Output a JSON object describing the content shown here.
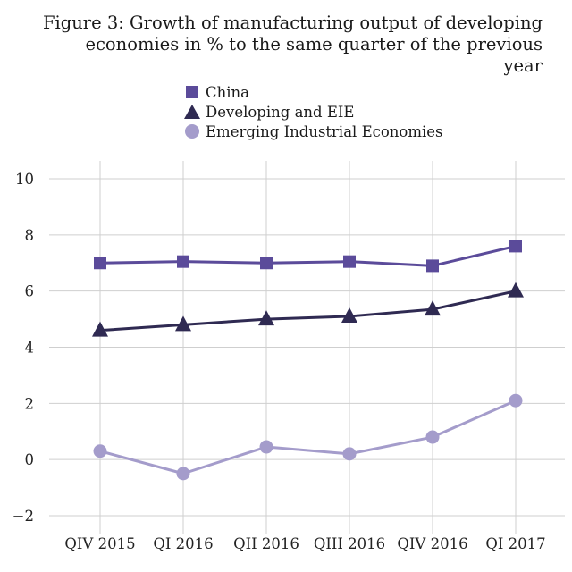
{
  "title_lines": [
    "Figure 3: Growth of manufacturing output of developing",
    "economies in % to the same quarter of the previous year"
  ],
  "chart_data": {
    "type": "line",
    "categories": [
      "QIV 2015",
      "QI 2016",
      "QII 2016",
      "QIII 2016",
      "QIV 2016",
      "QI 2017"
    ],
    "series": [
      {
        "name": "China",
        "marker": "square",
        "color": "#5b4b9a",
        "values": [
          7.0,
          7.05,
          7.0,
          7.05,
          6.9,
          7.6
        ]
      },
      {
        "name": "Developing and EIE",
        "marker": "triangle",
        "color": "#2f2a52",
        "values": [
          4.6,
          4.8,
          5.0,
          5.1,
          5.35,
          6.0
        ]
      },
      {
        "name": "Emerging Industrial Economies",
        "marker": "circle",
        "color": "#a49ccb",
        "values": [
          0.3,
          -0.5,
          0.45,
          0.2,
          0.8,
          2.1
        ]
      }
    ],
    "yticks": [
      -2,
      0,
      2,
      4,
      6,
      8,
      10
    ],
    "ytick_labels": [
      "−2",
      "0",
      "2",
      "4",
      "6",
      "8",
      "10"
    ],
    "ylim": [
      -2,
      10
    ],
    "xlabel": "",
    "ylabel": "",
    "grid": "horizontal and vertical",
    "legend_position": "top"
  }
}
